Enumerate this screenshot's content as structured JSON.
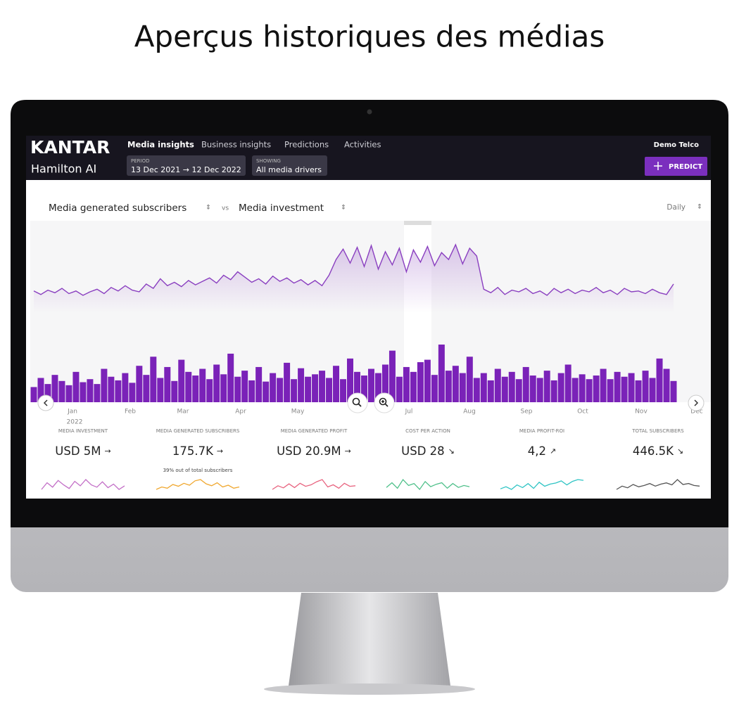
{
  "page_title": "Aperçus historiques des médias",
  "header": {
    "brand": "KANTAR",
    "product": "Hamilton AI",
    "nav": [
      "Media insights",
      "Business insights",
      "Predictions",
      "Activities"
    ],
    "period": {
      "label": "PERIOD",
      "value": "13 Dec 2021 → 12 Dec 2022"
    },
    "showing": {
      "label": "SHOWING",
      "value": "All media drivers"
    },
    "account": "Demo Telco",
    "action": "PREDICT"
  },
  "controls": {
    "metric_a": "Media generated subscribers",
    "versus": "vs",
    "metric_b": "Media investment",
    "granularity": "Daily"
  },
  "main_chart": {
    "type": "line-bar",
    "months": [
      "Jan",
      "Feb",
      "Mar",
      "Apr",
      "May",
      "Jul",
      "Aug",
      "Sep",
      "Oct",
      "Nov",
      "Dec"
    ],
    "year": "2022",
    "line": {
      "name": "Media generated subscribers",
      "color": "#8a3fc0",
      "values": [
        30,
        26,
        31,
        28,
        33,
        27,
        30,
        25,
        29,
        32,
        27,
        34,
        30,
        36,
        31,
        29,
        38,
        33,
        44,
        36,
        40,
        35,
        42,
        37,
        41,
        45,
        39,
        48,
        43,
        52,
        46,
        40,
        44,
        38,
        47,
        41,
        45,
        39,
        43,
        37,
        42,
        36,
        48,
        66,
        78,
        62,
        80,
        58,
        82,
        55,
        75,
        60,
        79,
        52,
        77,
        63,
        81,
        59,
        74,
        66,
        83,
        61,
        79,
        70,
        32,
        28,
        34,
        26,
        31,
        29,
        33,
        27,
        30,
        25,
        33,
        28,
        32,
        27,
        31,
        29,
        34,
        28,
        31,
        26,
        33,
        29,
        30,
        27,
        32,
        28,
        26,
        38
      ]
    },
    "bars": {
      "name": "Media investment",
      "color": "#7a22b8",
      "values": [
        25,
        40,
        30,
        45,
        35,
        28,
        50,
        33,
        38,
        30,
        55,
        42,
        36,
        48,
        32,
        60,
        45,
        75,
        40,
        58,
        35,
        70,
        50,
        44,
        55,
        38,
        62,
        46,
        80,
        42,
        52,
        36,
        58,
        34,
        48,
        40,
        65,
        38,
        56,
        42,
        46,
        52,
        40,
        60,
        38,
        72,
        50,
        44,
        55,
        48,
        62,
        85,
        42,
        58,
        50,
        66,
        70,
        45,
        95,
        52,
        60,
        48,
        75,
        40,
        48,
        36,
        55,
        42,
        50,
        38,
        58,
        44,
        40,
        52,
        36,
        48,
        62,
        40,
        46,
        38,
        44,
        55,
        38,
        50,
        42,
        48,
        36,
        52,
        40,
        72,
        55,
        35
      ]
    }
  },
  "kpis": [
    {
      "label": "MEDIA INVESTMENT",
      "value": "USD 5M",
      "trend": "→",
      "color": "#c36fc7",
      "spark": [
        40,
        55,
        45,
        60,
        50,
        42,
        58,
        48,
        62,
        50,
        45,
        57,
        44,
        52,
        40,
        48
      ]
    },
    {
      "label": "MEDIA GENERATED SUBSCRIBERS",
      "value": "175.7K",
      "trend": "→",
      "note": "39% out of total subscribers",
      "color": "#f0a830",
      "spark": [
        35,
        45,
        40,
        55,
        48,
        60,
        52,
        70,
        75,
        58,
        50,
        62,
        45,
        52,
        40,
        45
      ]
    },
    {
      "label": "MEDIA GENERATED PROFIT",
      "value": "USD 20.9M",
      "trend": "→",
      "color": "#e8637f",
      "spark": [
        40,
        52,
        45,
        58,
        46,
        60,
        50,
        55,
        65,
        72,
        48,
        55,
        44,
        60,
        50,
        52
      ]
    },
    {
      "label": "COST PER ACTION",
      "value": "USD 28",
      "trend": "↘",
      "color": "#4fc08a",
      "spark": [
        50,
        62,
        48,
        70,
        55,
        60,
        45,
        65,
        52,
        58,
        62,
        48,
        60,
        50,
        55,
        52
      ]
    },
    {
      "label": "MEDIA PROFIT-ROI",
      "value": "4,2",
      "trend": "↗",
      "color": "#2ec4c4",
      "spark": [
        40,
        48,
        38,
        55,
        45,
        60,
        42,
        65,
        50,
        58,
        62,
        70,
        55,
        68,
        75,
        72
      ]
    },
    {
      "label": "TOTAL SUBSCRIBERS",
      "value": "446.5K",
      "trend": "↘",
      "color": "#555555",
      "spark": [
        40,
        50,
        45,
        55,
        48,
        52,
        58,
        50,
        56,
        60,
        54,
        70,
        55,
        58,
        52,
        50
      ]
    }
  ]
}
